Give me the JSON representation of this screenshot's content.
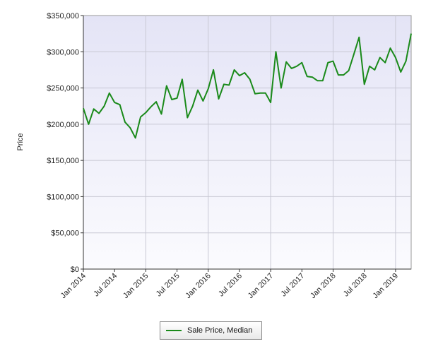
{
  "chart_data": {
    "type": "line",
    "title": "",
    "xlabel": "",
    "ylabel": "Price",
    "ylim": [
      0,
      350000
    ],
    "yticks": [
      0,
      50000,
      100000,
      150000,
      200000,
      250000,
      300000,
      350000
    ],
    "ytick_labels": [
      "$0",
      "$50,000",
      "$100,000",
      "$150,000",
      "$200,000",
      "$250,000",
      "$300,000",
      "$350,000"
    ],
    "xtick_labels": [
      "Jan 2014",
      "Jul 2014",
      "Jan 2015",
      "Jul 2015",
      "Jan 2016",
      "Jul 2016",
      "Jan 2017",
      "Jul 2017",
      "Jan 2018",
      "Jul 2018",
      "Jan 2019"
    ],
    "x_start": "Jan 2014",
    "x_end": "Apr 2019",
    "grid": true,
    "legend_position": "bottom-center",
    "series": [
      {
        "name": "Sale Price, Median",
        "color": "#1a8a1a",
        "x": [
          "2014-01",
          "2014-02",
          "2014-03",
          "2014-04",
          "2014-05",
          "2014-06",
          "2014-07",
          "2014-08",
          "2014-09",
          "2014-10",
          "2014-11",
          "2014-12",
          "2015-01",
          "2015-02",
          "2015-03",
          "2015-04",
          "2015-05",
          "2015-06",
          "2015-07",
          "2015-08",
          "2015-09",
          "2015-10",
          "2015-11",
          "2015-12",
          "2016-01",
          "2016-02",
          "2016-03",
          "2016-04",
          "2016-05",
          "2016-06",
          "2016-07",
          "2016-08",
          "2016-09",
          "2016-10",
          "2016-11",
          "2016-12",
          "2017-01",
          "2017-02",
          "2017-03",
          "2017-04",
          "2017-05",
          "2017-06",
          "2017-07",
          "2017-08",
          "2017-09",
          "2017-10",
          "2017-11",
          "2017-12",
          "2018-01",
          "2018-02",
          "2018-03",
          "2018-04",
          "2018-05",
          "2018-06",
          "2018-07",
          "2018-08",
          "2018-09",
          "2018-10",
          "2018-11",
          "2018-12",
          "2019-01",
          "2019-02",
          "2019-03",
          "2019-04"
        ],
        "values": [
          222000,
          200000,
          221000,
          215000,
          225000,
          243000,
          230000,
          227000,
          203000,
          195000,
          181000,
          210000,
          216000,
          224000,
          231000,
          214000,
          253000,
          234000,
          236000,
          262000,
          209000,
          225000,
          247000,
          232000,
          249000,
          275000,
          235000,
          255000,
          254000,
          275000,
          267000,
          271000,
          262000,
          242000,
          243000,
          243000,
          230000,
          300000,
          250000,
          286000,
          277000,
          280000,
          285000,
          266000,
          265000,
          260000,
          260000,
          285000,
          287000,
          268000,
          268000,
          274000,
          297000,
          320000,
          255000,
          280000,
          275000,
          292000,
          285000,
          305000,
          292000,
          272000,
          287000,
          325000
        ]
      }
    ]
  }
}
